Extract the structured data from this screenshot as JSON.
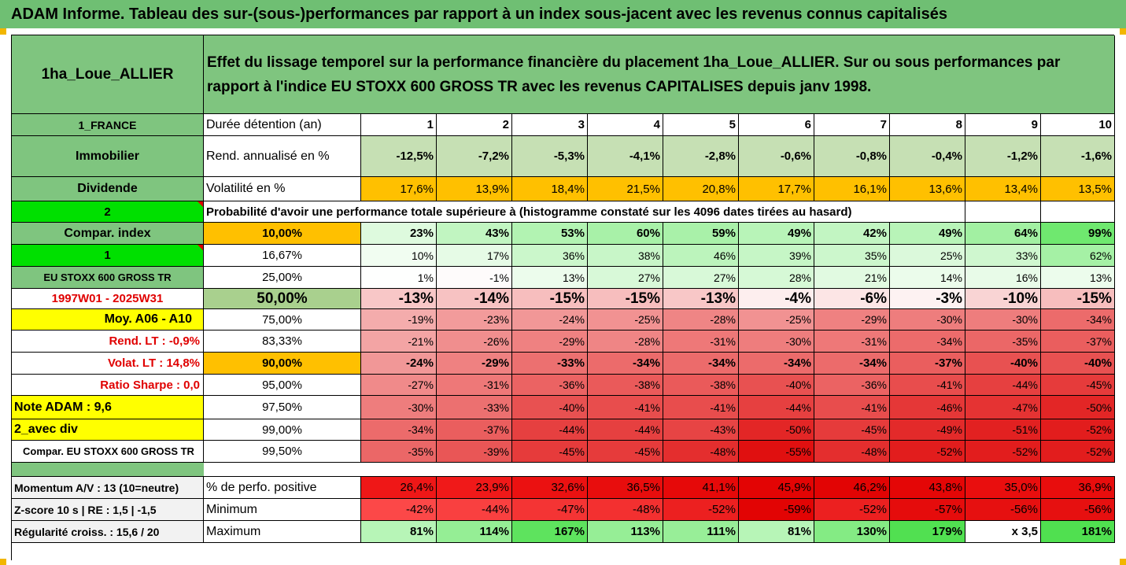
{
  "banner": "ADAM Informe. Tableau des sur-(sous-)performances par rapport à un index sous-jacent avec les revenus connus capitalisés",
  "header": {
    "name": "1ha_Loue_ALLIER",
    "description": "Effet du lissage temporel sur la performance financière du placement 1ha_Loue_ALLIER. Sur ou sous performances par rapport à l'indice EU STOXX 600 GROSS TR avec les revenus CAPITALISES depuis janv 1998."
  },
  "side": {
    "country": "1_FRANCE",
    "category": "Immobilier",
    "dividend": "Dividende",
    "num2": "2",
    "compar_index": "Compar. index",
    "num1": "1",
    "index_name": "EU STOXX 600 GROSS TR",
    "period": "1997W01 - 2025W31",
    "moy": "Moy. A06 - A10",
    "rend_lt": "Rend. LT :   -0,9%",
    "volat_lt": "Volat. LT :   14,8%",
    "sharpe": "Ratio Sharpe :   0,0",
    "note": "Note ADAM : 9,6",
    "avec_div": "2_avec div",
    "compar_eu": "Compar. EU STOXX 600 GROSS TR",
    "momentum": "Momentum A/V : 13 (10=neutre)",
    "zscore": "Z-score 10 s  | RE : 1,5  | -1,5",
    "regularite": "Régularité croiss. : 15,6 / 20"
  },
  "labels": {
    "duree": "Durée détention (an)",
    "rend": "Rend. annualisé en %",
    "volat": "Volatilité en %",
    "proba": "Probabilité d'avoir une performance totale supérieure à (histogramme constaté sur les 4096 dates tirées au hasard)",
    "perf_pos": "% de perfo. positive",
    "minimum": "Minimum",
    "maximum": "Maximum"
  },
  "years": [
    "1",
    "2",
    "3",
    "4",
    "5",
    "6",
    "7",
    "8",
    "9",
    "10"
  ],
  "rend": [
    "-12,5%",
    "-7,2%",
    "-5,3%",
    "-4,1%",
    "-2,8%",
    "-0,6%",
    "-0,8%",
    "-0,4%",
    "-1,2%",
    "-1,6%"
  ],
  "volat": [
    "17,6%",
    "13,9%",
    "18,4%",
    "21,5%",
    "20,8%",
    "17,7%",
    "16,1%",
    "13,6%",
    "13,4%",
    "13,5%"
  ],
  "prob_rows": [
    {
      "p": "10,00%",
      "v": [
        "23%",
        "43%",
        "53%",
        "60%",
        "59%",
        "49%",
        "42%",
        "49%",
        "64%",
        "99%"
      ]
    },
    {
      "p": "16,67%",
      "v": [
        "10%",
        "17%",
        "36%",
        "38%",
        "46%",
        "39%",
        "35%",
        "25%",
        "33%",
        "62%"
      ]
    },
    {
      "p": "25,00%",
      "v": [
        "1%",
        "-1%",
        "13%",
        "27%",
        "27%",
        "28%",
        "21%",
        "14%",
        "16%",
        "13%"
      ]
    },
    {
      "p": "50,00%",
      "v": [
        "-13%",
        "-14%",
        "-15%",
        "-15%",
        "-13%",
        "-4%",
        "-6%",
        "-3%",
        "-10%",
        "-15%"
      ]
    },
    {
      "p": "75,00%",
      "v": [
        "-19%",
        "-23%",
        "-24%",
        "-25%",
        "-28%",
        "-25%",
        "-29%",
        "-30%",
        "-30%",
        "-34%"
      ]
    },
    {
      "p": "83,33%",
      "v": [
        "-21%",
        "-26%",
        "-29%",
        "-28%",
        "-31%",
        "-30%",
        "-31%",
        "-34%",
        "-35%",
        "-37%"
      ]
    },
    {
      "p": "90,00%",
      "v": [
        "-24%",
        "-29%",
        "-33%",
        "-34%",
        "-34%",
        "-34%",
        "-34%",
        "-37%",
        "-40%",
        "-40%"
      ]
    },
    {
      "p": "95,00%",
      "v": [
        "-27%",
        "-31%",
        "-36%",
        "-38%",
        "-38%",
        "-40%",
        "-36%",
        "-41%",
        "-44%",
        "-45%"
      ]
    },
    {
      "p": "97,50%",
      "v": [
        "-30%",
        "-33%",
        "-40%",
        "-41%",
        "-41%",
        "-44%",
        "-41%",
        "-46%",
        "-47%",
        "-50%"
      ]
    },
    {
      "p": "99,00%",
      "v": [
        "-34%",
        "-37%",
        "-44%",
        "-44%",
        "-43%",
        "-50%",
        "-45%",
        "-49%",
        "-51%",
        "-52%"
      ]
    },
    {
      "p": "99,50%",
      "v": [
        "-35%",
        "-39%",
        "-45%",
        "-45%",
        "-48%",
        "-55%",
        "-48%",
        "-52%",
        "-52%",
        "-52%"
      ]
    }
  ],
  "perf_pos": [
    "26,4%",
    "23,9%",
    "32,6%",
    "36,5%",
    "41,1%",
    "45,9%",
    "46,2%",
    "43,8%",
    "35,0%",
    "36,9%"
  ],
  "minimum": [
    "-42%",
    "-44%",
    "-47%",
    "-48%",
    "-52%",
    "-59%",
    "-52%",
    "-57%",
    "-56%",
    "-56%"
  ],
  "maximum": [
    "81%",
    "114%",
    "167%",
    "113%",
    "111%",
    "81%",
    "130%",
    "179%",
    "x 3,5",
    "181%"
  ],
  "colors": {
    "band_green": "#6fbf73",
    "mid_green": "#7fc57f",
    "light_green": "#c6e0b4",
    "orange": "#ffc000",
    "bright_green": "#00e000",
    "yellow": "#ffff00",
    "red_text": "#e00000"
  }
}
